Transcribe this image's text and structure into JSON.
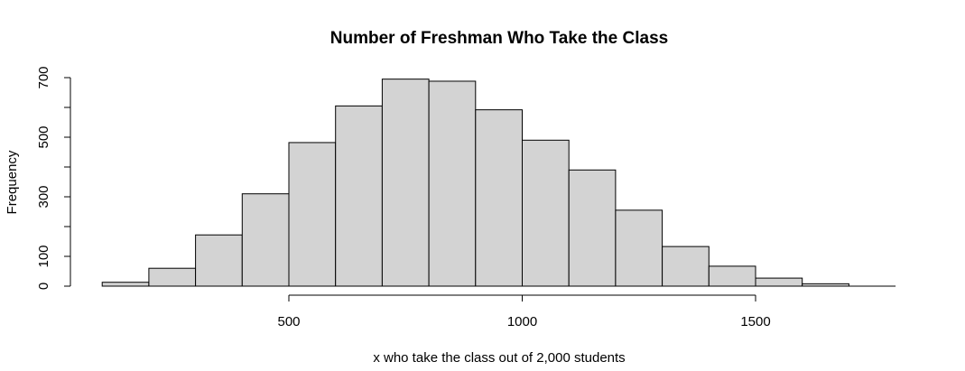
{
  "chart_data": {
    "type": "bar",
    "title": "Number of Freshman Who Take the Class",
    "xlabel": "x who take the class out of 2,000 students",
    "ylabel": "Frequency",
    "bins": [
      {
        "start": 100,
        "end": 200,
        "value": 13
      },
      {
        "start": 200,
        "end": 300,
        "value": 60
      },
      {
        "start": 300,
        "end": 400,
        "value": 172
      },
      {
        "start": 400,
        "end": 500,
        "value": 310
      },
      {
        "start": 500,
        "end": 600,
        "value": 482
      },
      {
        "start": 600,
        "end": 700,
        "value": 605
      },
      {
        "start": 700,
        "end": 800,
        "value": 695
      },
      {
        "start": 800,
        "end": 900,
        "value": 688
      },
      {
        "start": 900,
        "end": 1000,
        "value": 592
      },
      {
        "start": 1000,
        "end": 1100,
        "value": 490
      },
      {
        "start": 1100,
        "end": 1200,
        "value": 390
      },
      {
        "start": 1200,
        "end": 1300,
        "value": 255
      },
      {
        "start": 1300,
        "end": 1400,
        "value": 133
      },
      {
        "start": 1400,
        "end": 1500,
        "value": 67
      },
      {
        "start": 1500,
        "end": 1600,
        "value": 27
      },
      {
        "start": 1600,
        "end": 1700,
        "value": 8
      }
    ],
    "xticks": [
      500,
      1000,
      1500
    ],
    "xtick_labels": [
      "500",
      "1000",
      "1500"
    ],
    "yticks": [
      0,
      100,
      200,
      300,
      400,
      500,
      600,
      700
    ],
    "ytick_labels": [
      "0",
      "100",
      "",
      "300",
      "",
      "500",
      "",
      "700"
    ],
    "xlim": [
      100,
      1800
    ],
    "ylim": [
      0,
      700
    ],
    "grid": false,
    "bar_color": "#d3d3d3",
    "edge_color": "#000000"
  }
}
